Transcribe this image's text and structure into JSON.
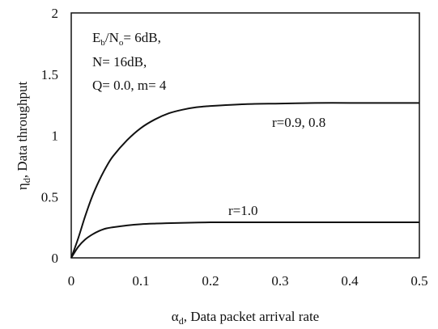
{
  "chart_data": {
    "type": "line",
    "xlabel_sym": "α",
    "xlabel_sub": "d",
    "xlabel_rest": ", Data packet arrival rate",
    "ylabel_sym": "η",
    "ylabel_sub": "d",
    "ylabel_rest": ", Data throughput",
    "xlim": [
      0,
      0.5
    ],
    "ylim": [
      0,
      2
    ],
    "xticks": [
      "0",
      "0.1",
      "0.2",
      "0.3",
      "0.4",
      "0.5"
    ],
    "xtick_values": [
      0,
      0.1,
      0.2,
      0.3,
      0.4,
      0.5
    ],
    "yticks": [
      "0",
      "0.5",
      "1",
      "1.5",
      "2"
    ],
    "ytick_values": [
      0,
      0.5,
      1,
      1.5,
      2
    ],
    "grid": false,
    "parameters": {
      "line1_E": "E",
      "line1_b": "b",
      "line1_slash": "/N",
      "line1_o": "o",
      "line1_rest": "= 6dB,",
      "line2": "N= 16dB,",
      "line3": "Q= 0.0, m= 4"
    },
    "series": [
      {
        "name": "r=0.9, 0.8",
        "x": [
          0,
          0.01,
          0.02,
          0.03,
          0.04,
          0.05,
          0.06,
          0.08,
          0.1,
          0.12,
          0.14,
          0.16,
          0.18,
          0.2,
          0.25,
          0.3,
          0.35,
          0.4,
          0.45,
          0.5
        ],
        "y": [
          0,
          0.16,
          0.34,
          0.5,
          0.63,
          0.74,
          0.83,
          0.96,
          1.06,
          1.13,
          1.18,
          1.21,
          1.23,
          1.24,
          1.255,
          1.26,
          1.265,
          1.265,
          1.265,
          1.265
        ]
      },
      {
        "name": "r=1.0",
        "x": [
          0,
          0.01,
          0.02,
          0.03,
          0.04,
          0.05,
          0.06,
          0.08,
          0.1,
          0.12,
          0.15,
          0.2,
          0.25,
          0.3,
          0.35,
          0.4,
          0.45,
          0.5
        ],
        "y": [
          0,
          0.09,
          0.15,
          0.19,
          0.22,
          0.24,
          0.25,
          0.265,
          0.275,
          0.28,
          0.285,
          0.29,
          0.29,
          0.29,
          0.29,
          0.29,
          0.29,
          0.29
        ]
      }
    ]
  }
}
